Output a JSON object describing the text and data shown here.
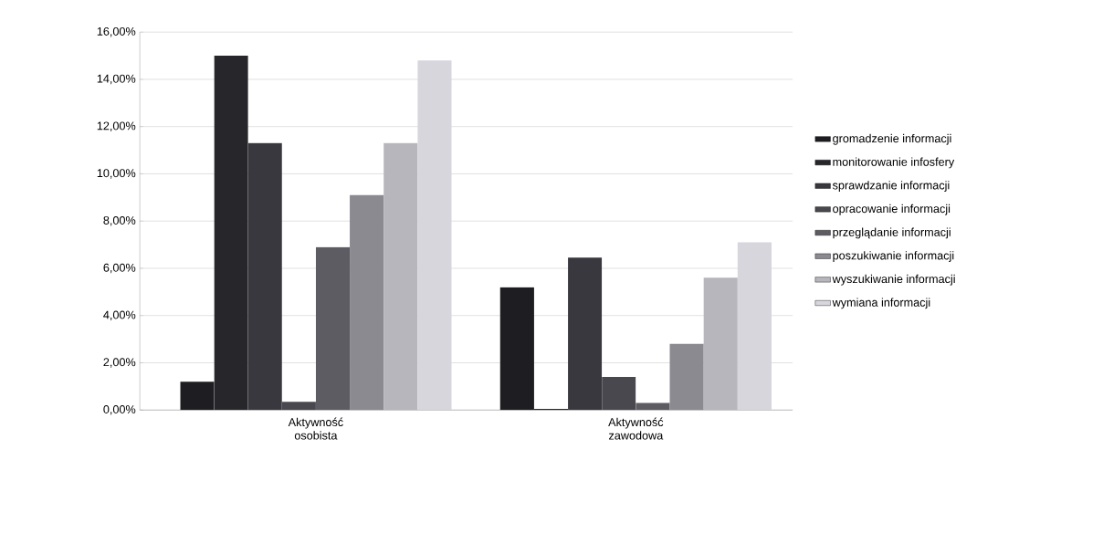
{
  "chart_data": {
    "type": "bar",
    "categories": [
      "Aktywność osobista",
      "Aktywność zawodowa"
    ],
    "series": [
      {
        "name": "gromadzenie informacji",
        "color": "#1e1e22",
        "values": [
          1.2,
          5.2
        ]
      },
      {
        "name": "monitorowanie infosfery",
        "color": "#26262b",
        "values": [
          15.0,
          0.05
        ]
      },
      {
        "name": "sprawdzanie informacji",
        "color": "#38383e",
        "values": [
          11.3,
          6.45
        ]
      },
      {
        "name": "opracowanie informacji",
        "color": "#48484e",
        "values": [
          0.35,
          1.4
        ]
      },
      {
        "name": "przeglądanie informacji",
        "color": "#5c5c62",
        "values": [
          6.9,
          0.3
        ]
      },
      {
        "name": "poszukiwanie informacji",
        "color": "#8a8a90",
        "values": [
          9.1,
          2.8
        ]
      },
      {
        "name": "wyszukiwanie informacji",
        "color": "#b6b6bc",
        "values": [
          11.3,
          5.6
        ]
      },
      {
        "name": "wymiana informacji",
        "color": "#d6d6dc",
        "values": [
          14.8,
          7.1
        ]
      }
    ],
    "ylim": [
      0,
      16
    ],
    "yticks": [
      {
        "value": 0,
        "label": "0,00%"
      },
      {
        "value": 2,
        "label": "2,00%"
      },
      {
        "value": 4,
        "label": "4,00%"
      },
      {
        "value": 6,
        "label": "6,00%"
      },
      {
        "value": 8,
        "label": "8,00%"
      },
      {
        "value": 10,
        "label": "10,00%"
      },
      {
        "value": 12,
        "label": "12,00%"
      },
      {
        "value": 14,
        "label": "14,00%"
      },
      {
        "value": 16,
        "label": "16,00%"
      }
    ],
    "grid": "y",
    "legend": "right"
  }
}
